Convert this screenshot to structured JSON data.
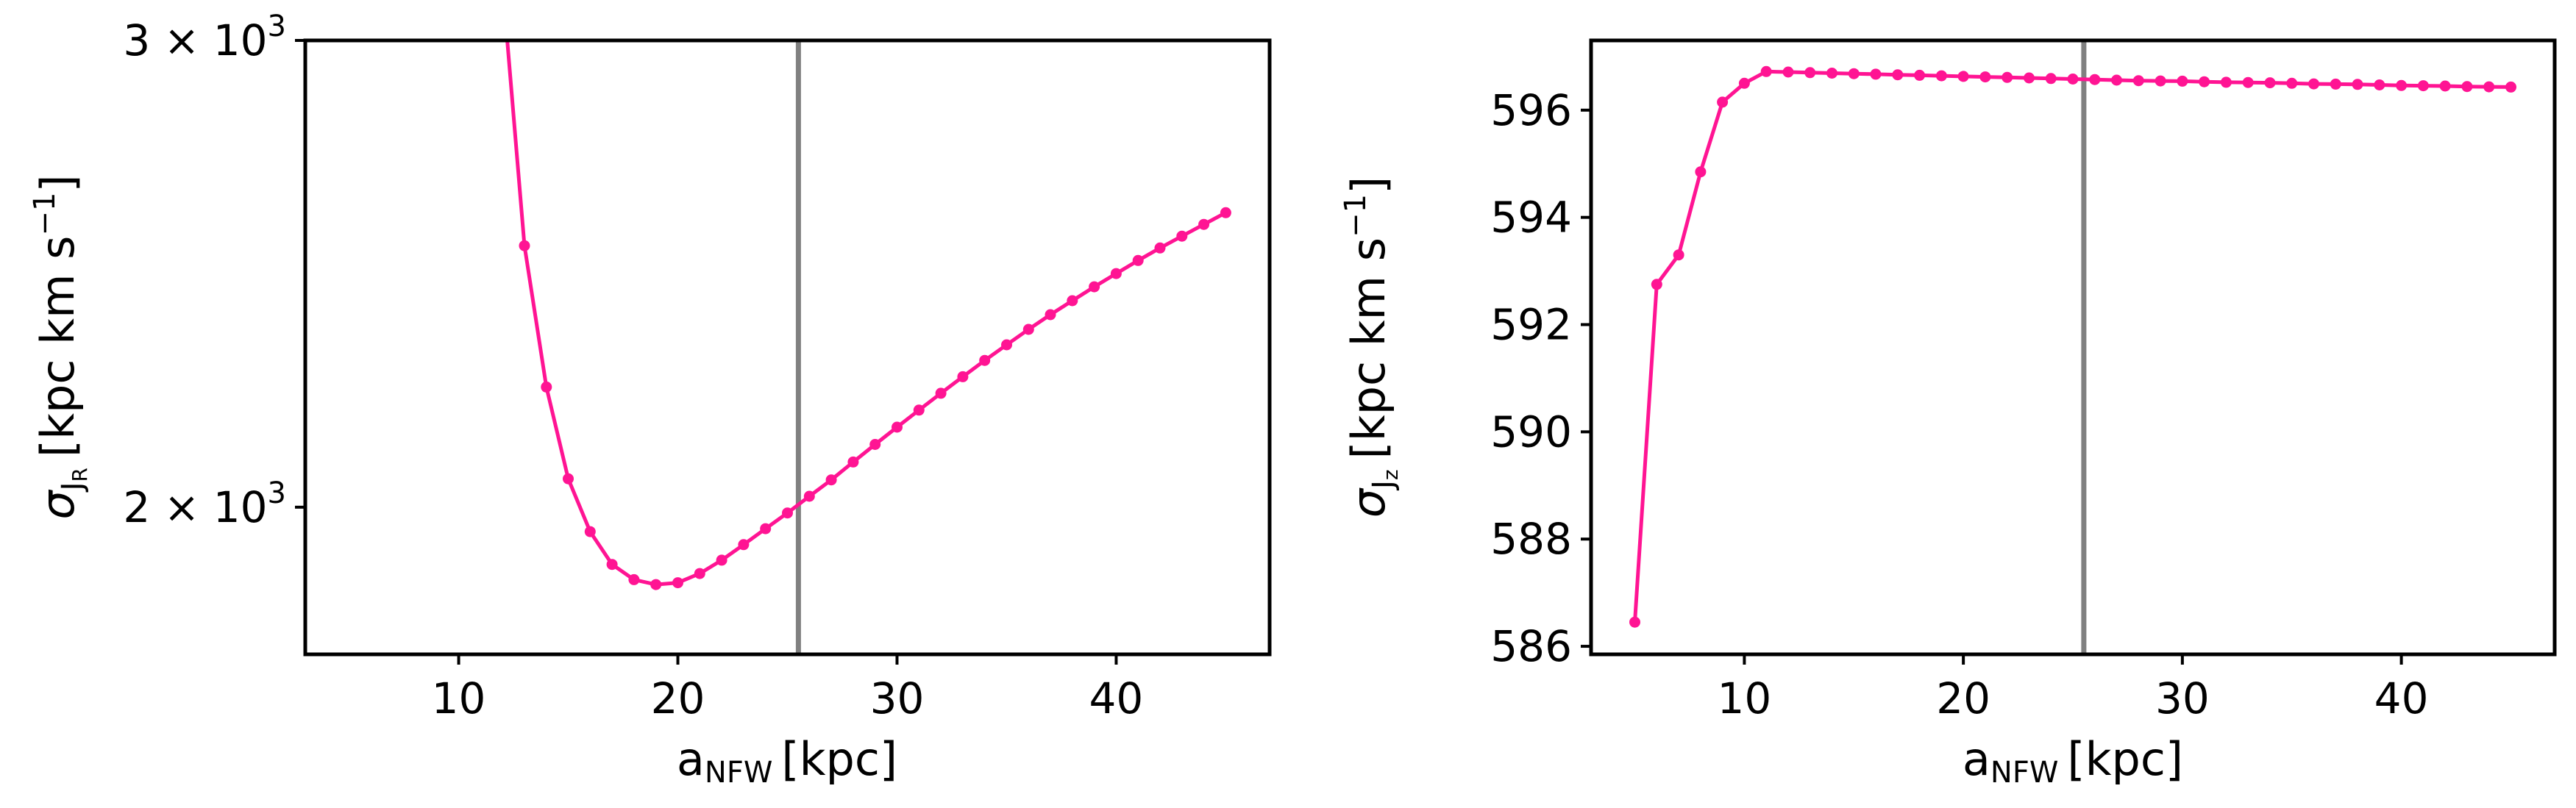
{
  "colors": {
    "series": "#ff1493",
    "reference_line": "#808080"
  },
  "chart_data": [
    {
      "type": "line",
      "xlabel_main": "a",
      "xlabel_sub": "NFW",
      "xlabel_unit": "[kpc]",
      "ylabel_sym": "σ",
      "ylabel_sub_main": "J",
      "ylabel_sub_sub": "R",
      "ylabel_unit_pre": "[kpc km s",
      "ylabel_unit_exp": "−1",
      "ylabel_unit_post": "]",
      "xlim": [
        3,
        47
      ],
      "ylim": [
        1760,
        3000
      ],
      "yscale": "log",
      "xticks": [
        10,
        20,
        30,
        40
      ],
      "yticks": [
        {
          "value": 2000,
          "mant": "2 × 10",
          "exp": "3"
        },
        {
          "value": 3000,
          "mant": "3 × 10",
          "exp": "3"
        }
      ],
      "reference_x": 25.5,
      "grid": false,
      "series": [
        {
          "x": [
            12,
            13,
            14,
            15,
            16,
            17,
            18,
            19,
            20,
            21,
            22,
            23,
            24,
            25,
            26,
            27,
            28,
            29,
            30,
            31,
            32,
            33,
            34,
            35,
            36,
            37,
            38,
            39,
            40,
            41,
            42,
            43,
            44,
            45
          ],
          "y": [
            3150,
            2510,
            2220,
            2050,
            1958,
            1903,
            1878,
            1870,
            1873,
            1888,
            1910,
            1936,
            1963,
            1990,
            2019,
            2048,
            2080,
            2112,
            2144,
            2176,
            2208,
            2240,
            2272,
            2303,
            2334,
            2364,
            2393,
            2422,
            2450,
            2478,
            2505,
            2531,
            2557,
            2583
          ]
        }
      ]
    },
    {
      "type": "line",
      "xlabel_main": "a",
      "xlabel_sub": "NFW",
      "xlabel_unit": "[kpc]",
      "ylabel_sym": "σ",
      "ylabel_sub_main": "J",
      "ylabel_sub_sub": "z",
      "ylabel_unit_pre": "[kpc km s",
      "ylabel_unit_exp": "−1",
      "ylabel_unit_post": "]",
      "xlim": [
        3,
        47
      ],
      "ylim": [
        585.85,
        597.3
      ],
      "yscale": "linear",
      "xticks": [
        10,
        20,
        30,
        40
      ],
      "yticks": [
        {
          "value": 586,
          "label": "586"
        },
        {
          "value": 588,
          "label": "588"
        },
        {
          "value": 590,
          "label": "590"
        },
        {
          "value": 592,
          "label": "592"
        },
        {
          "value": 594,
          "label": "594"
        },
        {
          "value": 596,
          "label": "596"
        }
      ],
      "reference_x": 25.5,
      "grid": false,
      "series": [
        {
          "x": [
            5,
            6,
            7,
            8,
            9,
            10,
            11,
            12,
            13,
            14,
            15,
            16,
            17,
            18,
            19,
            20,
            21,
            22,
            23,
            24,
            25,
            26,
            27,
            28,
            29,
            30,
            31,
            32,
            33,
            34,
            35,
            36,
            37,
            38,
            39,
            40,
            41,
            42,
            43,
            44,
            45
          ],
          "y": [
            586.45,
            592.75,
            593.3,
            594.85,
            596.15,
            596.5,
            596.72,
            596.71,
            596.7,
            596.69,
            596.68,
            596.67,
            596.66,
            596.65,
            596.64,
            596.63,
            596.62,
            596.61,
            596.6,
            596.59,
            596.58,
            596.57,
            596.56,
            596.55,
            596.545,
            596.54,
            596.53,
            596.52,
            596.515,
            596.51,
            596.5,
            596.49,
            596.485,
            596.48,
            596.47,
            596.46,
            596.455,
            596.45,
            596.44,
            596.435,
            596.43
          ]
        }
      ]
    }
  ]
}
